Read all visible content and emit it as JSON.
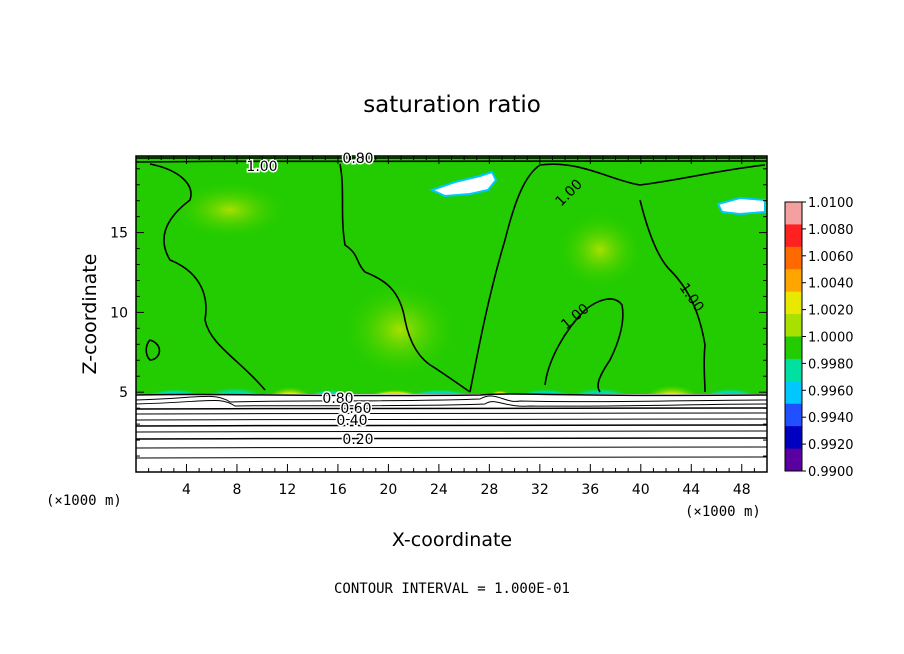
{
  "chart_data": {
    "type": "heatmap",
    "title": "saturation ratio",
    "xlabel": "X-coordinate",
    "ylabel": "Z-coordinate",
    "x_unit": "(×1000 m)",
    "z_unit": "(×1000 m)",
    "x_range": [
      0,
      50
    ],
    "z_range": [
      0,
      19.8
    ],
    "x_ticks": [
      "4",
      "8",
      "12",
      "16",
      "20",
      "24",
      "28",
      "32",
      "36",
      "40",
      "44",
      "48"
    ],
    "z_ticks": [
      "5",
      "10",
      "15"
    ],
    "colorbar": {
      "labels": [
        "1.0100",
        "1.0080",
        "1.0060",
        "1.0040",
        "1.0020",
        "1.0000",
        "0.9980",
        "0.9960",
        "0.9940",
        "0.9920",
        "0.9900"
      ],
      "colors": [
        "#f4a0a0",
        "#ff2020",
        "#ff6a00",
        "#ffa500",
        "#e8e800",
        "#a8e000",
        "#22cc00",
        "#00e0a0",
        "#00c8ff",
        "#2050ff",
        "#0000c0",
        "#5a00a0"
      ]
    },
    "contour_interval_text": "CONTOUR INTERVAL = 1.000E-01",
    "contour_labels": [
      "1.00",
      "0.80",
      "1.00",
      "1.00",
      "1.00",
      "0.80",
      "0.60",
      "0.40",
      "0.20"
    ]
  }
}
